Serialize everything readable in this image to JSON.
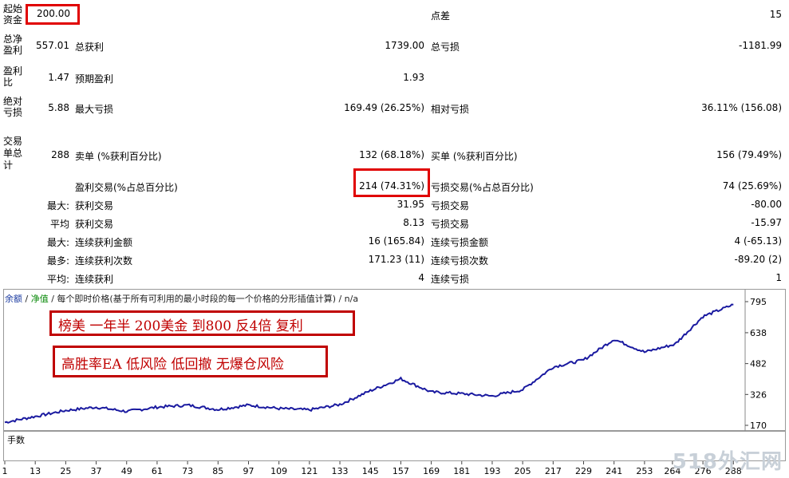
{
  "report": {
    "rows": [
      {
        "key": "initial_deposit",
        "label": "起始资金",
        "value": "200.00",
        "right_label": "点差",
        "right_value": "15"
      },
      {
        "key": "net_profit",
        "label": "总净盈利",
        "value": "557.01",
        "mid_label": "总获利",
        "mid_value": "1739.00",
        "right_label": "总亏损",
        "right_value": "-1181.99"
      },
      {
        "key": "profit_factor",
        "label": "盈利比",
        "value": "1.47",
        "mid_label": "预期盈利",
        "mid_value": "1.93"
      },
      {
        "key": "abs_drawdown",
        "label": "绝对亏损",
        "value": "5.88",
        "mid_label": "最大亏损",
        "mid_value": "169.49 (26.25%)",
        "right_label": "相对亏损",
        "right_value": "36.11% (156.08)"
      },
      {
        "key": "total_trades",
        "label": "交易单总计",
        "value": "288",
        "mid_label": "卖单 (%获利百分比)",
        "mid_value": "132 (68.18%)",
        "right_label": "买单 (%获利百分比)",
        "right_value": "156 (79.49%)"
      }
    ],
    "profit_trades_label": "盈利交易(%占总百分比)",
    "profit_trades_value": "214 (74.31%)",
    "loss_trades_label": "亏损交易(%占总百分比)",
    "loss_trades_value": "74 (25.69%)",
    "sub_rows": [
      {
        "prefix": "最大:",
        "mid_label": "获利交易",
        "mid_value": "31.95",
        "right_label": "亏损交易",
        "right_value": "-80.00"
      },
      {
        "prefix": "平均",
        "mid_label": "获利交易",
        "mid_value": "8.13",
        "right_label": "亏损交易",
        "right_value": "-15.97"
      },
      {
        "prefix": "最大:",
        "mid_label": "连续获利金额",
        "mid_value": "16 (165.84)",
        "right_label": "连续亏损金额",
        "right_value": "4 (-65.13)"
      },
      {
        "prefix": "最多:",
        "mid_label": "连续获利次数",
        "mid_value": "171.23 (11)",
        "right_label": "连续亏损次数",
        "right_value": "-89.20 (2)"
      },
      {
        "prefix": "平均:",
        "mid_label": "连续获利",
        "mid_value": "4",
        "right_label": "连续亏损",
        "right_value": "1"
      }
    ]
  },
  "chart": {
    "header_balance": "余额",
    "header_equity": "净值",
    "header_text": "/ 每个即时价格(基于所有可利用的最小时段的每一个价格的分形插值计算) / n/a",
    "volume_label": "手数",
    "annotation1": "榜美 一年半 200美金 到800 反4倍 复利",
    "annotation2": "高胜率EA 低风险 低回撤 无爆仓风险",
    "watermark": "518外汇网",
    "line_color": "#1a1aa0",
    "volume_color": "#33cc33"
  },
  "chart_data": {
    "type": "line",
    "x": [
      1,
      13,
      25,
      37,
      49,
      61,
      73,
      85,
      97,
      109,
      121,
      133,
      145,
      157,
      169,
      181,
      193,
      205,
      217,
      229,
      241,
      253,
      265,
      276,
      288
    ],
    "y": [
      185,
      215,
      245,
      262,
      240,
      262,
      272,
      250,
      272,
      255,
      248,
      275,
      345,
      405,
      338,
      330,
      318,
      350,
      465,
      500,
      605,
      540,
      580,
      720,
      780
    ],
    "x_ticks": [
      "1",
      "13",
      "25",
      "37",
      "49",
      "61",
      "73",
      "85",
      "97",
      "109",
      "121",
      "133",
      "145",
      "157",
      "169",
      "181",
      "193",
      "205",
      "217",
      "229",
      "241",
      "253",
      "264",
      "276",
      "288"
    ],
    "y_ticks": [
      "170",
      "326",
      "482",
      "638",
      "795"
    ],
    "ylim": [
      170,
      795
    ],
    "xlim": [
      1,
      292
    ]
  }
}
